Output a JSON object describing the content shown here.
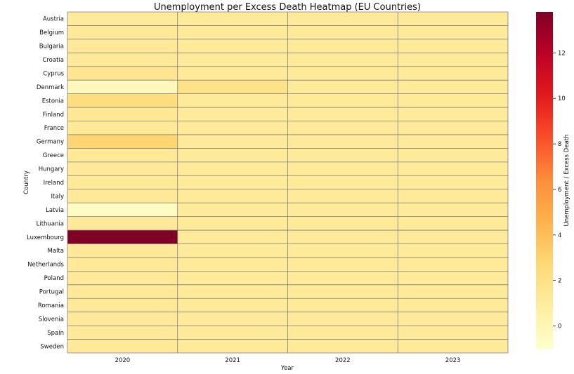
{
  "chart_data": {
    "type": "heatmap",
    "title": "Unemployment per Excess Death Heatmap (EU Countries)",
    "xlabel": "Year",
    "ylabel": "Country",
    "x": [
      "2020",
      "2021",
      "2022",
      "2023"
    ],
    "y": [
      "Austria",
      "Belgium",
      "Bulgaria",
      "Croatia",
      "Cyprus",
      "Denmark",
      "Estonia",
      "Finland",
      "France",
      "Germany",
      "Greece",
      "Hungary",
      "Ireland",
      "Italy",
      "Latvia",
      "Lithuania",
      "Luxembourg",
      "Malta",
      "Netherlands",
      "Poland",
      "Portugal",
      "Romania",
      "Slovenia",
      "Spain",
      "Sweden"
    ],
    "values": [
      [
        1.1,
        1.1,
        1.1,
        1.1
      ],
      [
        1.2,
        1.1,
        1.1,
        1.1
      ],
      [
        1.2,
        1.1,
        1.1,
        1.1
      ],
      [
        1.2,
        1.1,
        1.1,
        1.1
      ],
      [
        1.6,
        1.1,
        1.1,
        1.1
      ],
      [
        -0.3,
        1.9,
        1.1,
        1.1
      ],
      [
        2.3,
        1.1,
        1.1,
        1.1
      ],
      [
        1.4,
        1.1,
        1.1,
        1.1
      ],
      [
        1.3,
        1.1,
        1.1,
        1.1
      ],
      [
        2.9,
        1.1,
        1.1,
        1.1
      ],
      [
        1.3,
        1.1,
        1.1,
        1.1
      ],
      [
        1.2,
        1.1,
        1.1,
        1.1
      ],
      [
        1.3,
        1.1,
        1.1,
        1.1
      ],
      [
        1.2,
        1.1,
        1.1,
        1.1
      ],
      [
        -0.6,
        1.1,
        1.1,
        1.1
      ],
      [
        1.2,
        1.1,
        1.1,
        1.1
      ],
      [
        13.8,
        1.1,
        1.1,
        1.1
      ],
      [
        1.2,
        1.1,
        1.1,
        1.1
      ],
      [
        1.2,
        1.1,
        1.1,
        1.1
      ],
      [
        1.2,
        1.1,
        1.1,
        1.1
      ],
      [
        1.2,
        1.1,
        1.1,
        1.1
      ],
      [
        1.2,
        1.1,
        1.1,
        1.1
      ],
      [
        1.2,
        1.1,
        1.1,
        1.1
      ],
      [
        1.2,
        1.1,
        1.1,
        1.1
      ],
      [
        1.2,
        1.1,
        1.1,
        1.1
      ]
    ],
    "colorbar": {
      "label": "Unemployment / Excess Death",
      "range": [
        -1.0,
        13.8
      ],
      "ticks": [
        0,
        2,
        4,
        6,
        8,
        10,
        12
      ],
      "colormap": "YlOrRd"
    },
    "grid": true,
    "gridline_color": "#7f7f7f"
  }
}
